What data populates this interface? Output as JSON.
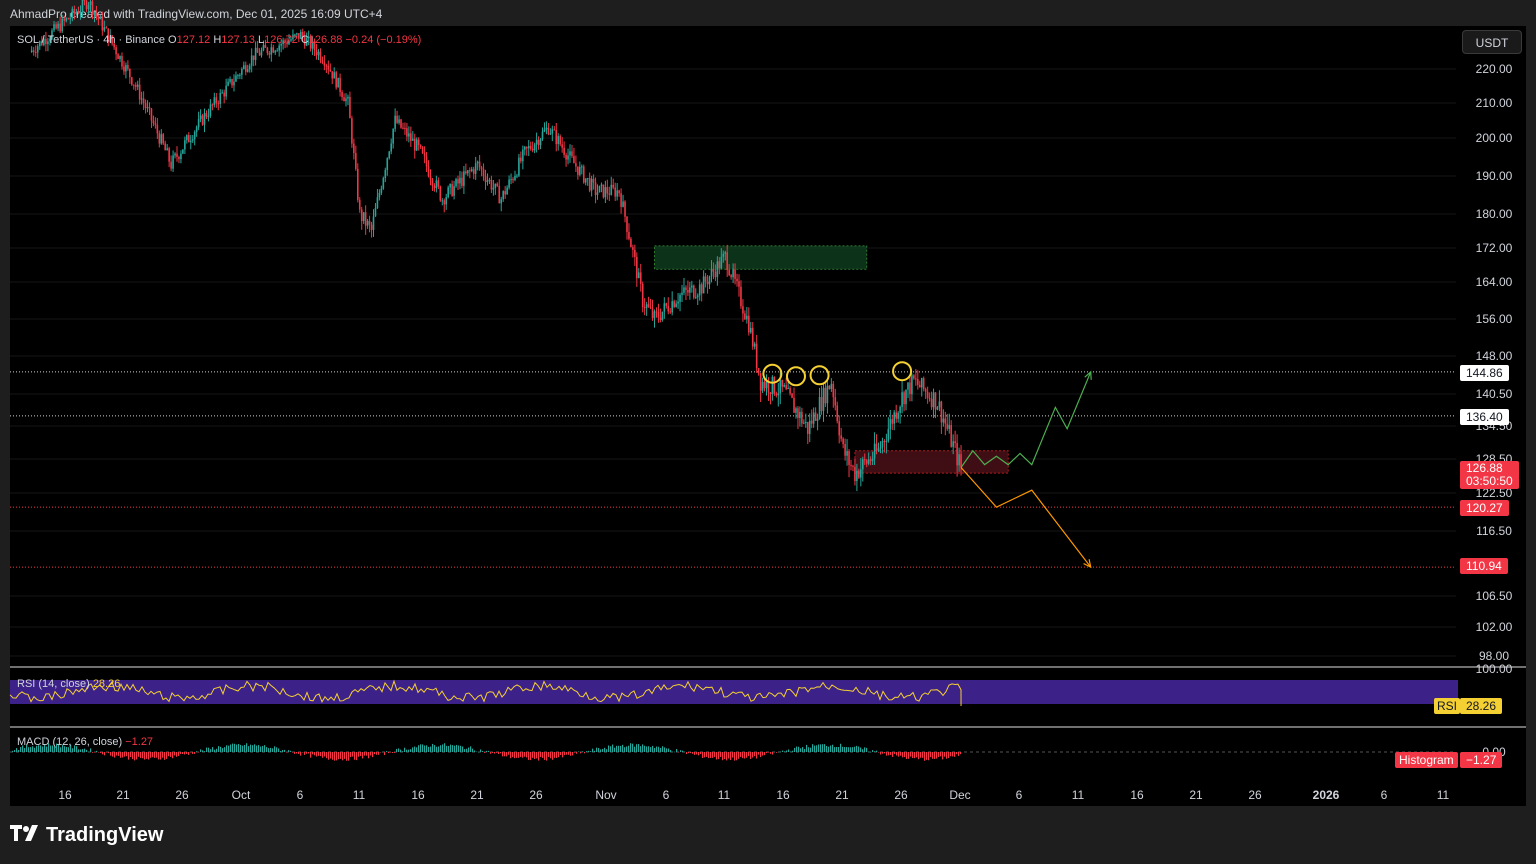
{
  "header": {
    "attribution": "AhmadPro created with TradingView.com, Dec 01, 2025 16:09 UTC+4"
  },
  "legend": {
    "symbol": "SOL / TetherUS · 4h · Binance",
    "open_label": "O",
    "open": "127.12",
    "high_label": "H",
    "high": "127.13",
    "low_label": "L",
    "low": "126.72",
    "close_label": "C",
    "close": "126.88",
    "change": "−0.24 (−0.19%)"
  },
  "currency_button": "USDT",
  "price_labels": [
    "220.00",
    "210.00",
    "200.00",
    "190.00",
    "180.00",
    "172.00",
    "164.00",
    "156.00",
    "148.00",
    "140.50",
    "134.50",
    "128.50",
    "122.50",
    "116.50",
    "106.50",
    "102.00",
    "98.00"
  ],
  "price_badges": {
    "level_1": "144.86",
    "level_2": "136.40",
    "last_price": "126.88",
    "countdown": "03:50:50",
    "support_1": "120.27",
    "support_2": "110.94"
  },
  "rsi": {
    "label": "RSI (14, close)",
    "value": "28.26",
    "badge_name": "RSI",
    "badge_value": "28.26",
    "scale_top": "100.00"
  },
  "macd": {
    "label": "MACD (12, 26, close)",
    "value": "−1.27",
    "badge_name": "Histogram",
    "badge_value": "−1.27",
    "zero_label": "0.00"
  },
  "time_labels": [
    "16",
    "21",
    "26",
    "Oct",
    "6",
    "11",
    "16",
    "21",
    "26",
    "Nov",
    "6",
    "11",
    "16",
    "21",
    "26",
    "Dec",
    "6",
    "11",
    "16",
    "21",
    "26",
    "2026",
    "6",
    "11"
  ],
  "brand": "TradingView",
  "colors": {
    "up": "#26a69a",
    "down": "#f23645",
    "rsi_band": "#4527a0",
    "rsi_line": "#f5d033",
    "supply_zone": "#0e3b1e",
    "demand_zone": "#4a0f18",
    "bull_path": "#4caf50",
    "bear_path": "#ff9800"
  },
  "chart_data": {
    "type": "candlestick",
    "symbol": "SOL / TetherUS",
    "interval": "4h",
    "ylim": [
      96,
      230
    ],
    "approx_close_path": [
      {
        "date": "2025-09-13",
        "price": 225
      },
      {
        "date": "2025-09-18",
        "price": 240
      },
      {
        "date": "2025-09-22",
        "price": 215
      },
      {
        "date": "2025-09-25",
        "price": 193
      },
      {
        "date": "2025-09-28",
        "price": 207
      },
      {
        "date": "2025-10-02",
        "price": 224
      },
      {
        "date": "2025-10-06",
        "price": 230
      },
      {
        "date": "2025-10-08",
        "price": 223
      },
      {
        "date": "2025-10-10",
        "price": 210
      },
      {
        "date": "2025-10-11",
        "price": 180
      },
      {
        "date": "2025-10-12",
        "price": 176
      },
      {
        "date": "2025-10-14",
        "price": 205
      },
      {
        "date": "2025-10-16",
        "price": 197
      },
      {
        "date": "2025-10-18",
        "price": 184
      },
      {
        "date": "2025-10-21",
        "price": 193
      },
      {
        "date": "2025-10-23",
        "price": 184
      },
      {
        "date": "2025-10-25",
        "price": 196
      },
      {
        "date": "2025-10-27",
        "price": 203
      },
      {
        "date": "2025-10-29",
        "price": 194
      },
      {
        "date": "2025-10-31",
        "price": 186
      },
      {
        "date": "2025-11-02",
        "price": 186
      },
      {
        "date": "2025-11-04",
        "price": 160
      },
      {
        "date": "2025-11-05",
        "price": 156
      },
      {
        "date": "2025-11-07",
        "price": 161
      },
      {
        "date": "2025-11-09",
        "price": 163
      },
      {
        "date": "2025-11-11",
        "price": 170
      },
      {
        "date": "2025-11-13",
        "price": 155
      },
      {
        "date": "2025-11-14",
        "price": 143
      },
      {
        "date": "2025-11-16",
        "price": 141
      },
      {
        "date": "2025-11-18",
        "price": 134
      },
      {
        "date": "2025-11-20",
        "price": 143
      },
      {
        "date": "2025-11-21",
        "price": 130
      },
      {
        "date": "2025-11-22",
        "price": 126
      },
      {
        "date": "2025-11-24",
        "price": 130
      },
      {
        "date": "2025-11-26",
        "price": 140
      },
      {
        "date": "2025-11-27",
        "price": 143
      },
      {
        "date": "2025-11-29",
        "price": 139
      },
      {
        "date": "2025-12-01",
        "price": 126.88
      }
    ],
    "horizontal_levels": [
      144.86,
      136.4,
      120.27,
      110.94
    ],
    "zones": [
      {
        "kind": "supply",
        "from_date": "2025-11-05",
        "to_date": "2025-11-23",
        "top": 172.5,
        "bottom": 167.0
      },
      {
        "kind": "demand",
        "from_date": "2025-11-22",
        "to_date": "2025-12-05",
        "top": 130.0,
        "bottom": 126.0
      }
    ],
    "marked_highs": [
      {
        "date": "2025-11-15",
        "price": 144.5
      },
      {
        "date": "2025-11-17",
        "price": 144.0
      },
      {
        "date": "2025-11-19",
        "price": 144.2
      },
      {
        "date": "2025-11-26",
        "price": 145.0
      }
    ],
    "projections": [
      {
        "name": "bullish",
        "points": [
          {
            "date": "2025-12-01",
            "price": 127
          },
          {
            "date": "2025-12-02",
            "price": 130
          },
          {
            "date": "2025-12-03",
            "price": 127.5
          },
          {
            "date": "2025-12-04",
            "price": 129
          },
          {
            "date": "2025-12-05",
            "price": 127.5
          },
          {
            "date": "2025-12-06",
            "price": 129.5
          },
          {
            "date": "2025-12-07",
            "price": 127.5
          },
          {
            "date": "2025-12-09",
            "price": 138
          },
          {
            "date": "2025-12-10",
            "price": 134
          },
          {
            "date": "2025-12-12",
            "price": 144.86
          }
        ]
      },
      {
        "name": "bearish",
        "points": [
          {
            "date": "2025-12-01",
            "price": 127
          },
          {
            "date": "2025-12-04",
            "price": 120.27
          },
          {
            "date": "2025-12-07",
            "price": 123
          },
          {
            "date": "2025-12-12",
            "price": 110.94
          }
        ]
      }
    ],
    "rsi_last": 28.26,
    "macd_histogram_last": -1.27
  }
}
